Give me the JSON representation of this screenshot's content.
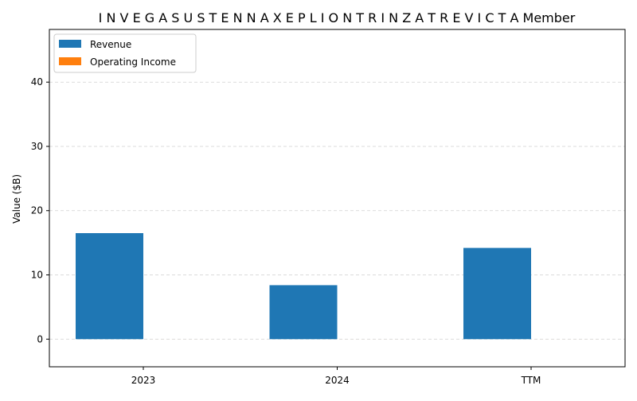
{
  "chart_data": {
    "type": "bar",
    "title": "I N V E G A S U S T E N N A X E P L I O N T R I N Z A T R E V I C T A Member",
    "xlabel": "",
    "ylabel": "Value ($B)",
    "categories": [
      "2023",
      "2024",
      "TTM"
    ],
    "series": [
      {
        "name": "Revenue",
        "color": "#1f77b4",
        "values": [
          16.5,
          8.4,
          14.2
        ]
      },
      {
        "name": "Operating Income",
        "color": "#ff7f0e",
        "values": [
          0,
          0,
          0
        ]
      }
    ],
    "ylim": [
      -4.3,
      48.2
    ],
    "yticks": [
      0,
      10,
      20,
      30,
      40
    ],
    "grid": "y-dashed",
    "legend": "top-left"
  }
}
